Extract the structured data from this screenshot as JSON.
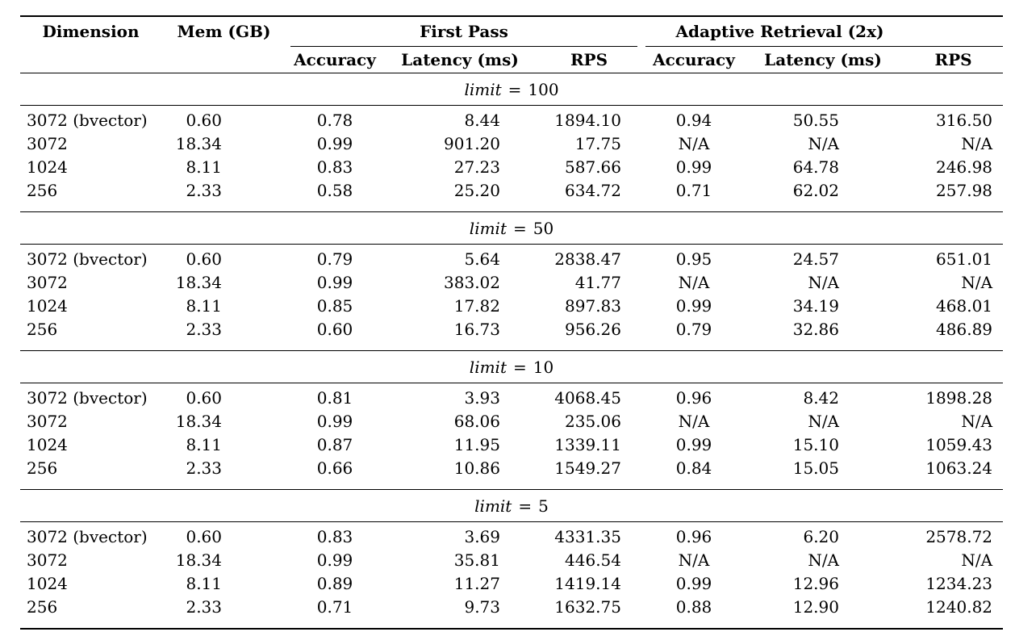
{
  "table": {
    "header": {
      "dimension": "Dimension",
      "mem": "Mem (GB)",
      "groups": [
        {
          "label": "First Pass",
          "subheaders": [
            "Accuracy",
            "Latency (ms)",
            "RPS"
          ]
        },
        {
          "label": "Adaptive Retrieval (2x)",
          "subheaders": [
            "Accuracy",
            "Latency (ms)",
            "RPS"
          ]
        }
      ]
    },
    "limit_word": "limit",
    "equals_sign": "=",
    "sections": [
      {
        "limit_value": "100",
        "rows": [
          {
            "dimension": "3072 (bvector)",
            "mem": "0.60",
            "fp_accuracy": "0.78",
            "fp_latency": "8.44",
            "fp_rps": "1894.10",
            "ar_accuracy": "0.94",
            "ar_latency": "50.55",
            "ar_rps": "316.50"
          },
          {
            "dimension": "3072",
            "mem": "18.34",
            "fp_accuracy": "0.99",
            "fp_latency": "901.20",
            "fp_rps": "17.75",
            "ar_accuracy": "N/A",
            "ar_latency": "N/A",
            "ar_rps": "N/A"
          },
          {
            "dimension": "1024",
            "mem": "8.11",
            "fp_accuracy": "0.83",
            "fp_latency": "27.23",
            "fp_rps": "587.66",
            "ar_accuracy": "0.99",
            "ar_latency": "64.78",
            "ar_rps": "246.98"
          },
          {
            "dimension": "256",
            "mem": "2.33",
            "fp_accuracy": "0.58",
            "fp_latency": "25.20",
            "fp_rps": "634.72",
            "ar_accuracy": "0.71",
            "ar_latency": "62.02",
            "ar_rps": "257.98"
          }
        ]
      },
      {
        "limit_value": "50",
        "rows": [
          {
            "dimension": "3072 (bvector)",
            "mem": "0.60",
            "fp_accuracy": "0.79",
            "fp_latency": "5.64",
            "fp_rps": "2838.47",
            "ar_accuracy": "0.95",
            "ar_latency": "24.57",
            "ar_rps": "651.01"
          },
          {
            "dimension": "3072",
            "mem": "18.34",
            "fp_accuracy": "0.99",
            "fp_latency": "383.02",
            "fp_rps": "41.77",
            "ar_accuracy": "N/A",
            "ar_latency": "N/A",
            "ar_rps": "N/A"
          },
          {
            "dimension": "1024",
            "mem": "8.11",
            "fp_accuracy": "0.85",
            "fp_latency": "17.82",
            "fp_rps": "897.83",
            "ar_accuracy": "0.99",
            "ar_latency": "34.19",
            "ar_rps": "468.01"
          },
          {
            "dimension": "256",
            "mem": "2.33",
            "fp_accuracy": "0.60",
            "fp_latency": "16.73",
            "fp_rps": "956.26",
            "ar_accuracy": "0.79",
            "ar_latency": "32.86",
            "ar_rps": "486.89"
          }
        ]
      },
      {
        "limit_value": "10",
        "rows": [
          {
            "dimension": "3072 (bvector)",
            "mem": "0.60",
            "fp_accuracy": "0.81",
            "fp_latency": "3.93",
            "fp_rps": "4068.45",
            "ar_accuracy": "0.96",
            "ar_latency": "8.42",
            "ar_rps": "1898.28"
          },
          {
            "dimension": "3072",
            "mem": "18.34",
            "fp_accuracy": "0.99",
            "fp_latency": "68.06",
            "fp_rps": "235.06",
            "ar_accuracy": "N/A",
            "ar_latency": "N/A",
            "ar_rps": "N/A"
          },
          {
            "dimension": "1024",
            "mem": "8.11",
            "fp_accuracy": "0.87",
            "fp_latency": "11.95",
            "fp_rps": "1339.11",
            "ar_accuracy": "0.99",
            "ar_latency": "15.10",
            "ar_rps": "1059.43"
          },
          {
            "dimension": "256",
            "mem": "2.33",
            "fp_accuracy": "0.66",
            "fp_latency": "10.86",
            "fp_rps": "1549.27",
            "ar_accuracy": "0.84",
            "ar_latency": "15.05",
            "ar_rps": "1063.24"
          }
        ]
      },
      {
        "limit_value": "5",
        "rows": [
          {
            "dimension": "3072 (bvector)",
            "mem": "0.60",
            "fp_accuracy": "0.83",
            "fp_latency": "3.69",
            "fp_rps": "4331.35",
            "ar_accuracy": "0.96",
            "ar_latency": "6.20",
            "ar_rps": "2578.72"
          },
          {
            "dimension": "3072",
            "mem": "18.34",
            "fp_accuracy": "0.99",
            "fp_latency": "35.81",
            "fp_rps": "446.54",
            "ar_accuracy": "N/A",
            "ar_latency": "N/A",
            "ar_rps": "N/A"
          },
          {
            "dimension": "1024",
            "mem": "8.11",
            "fp_accuracy": "0.89",
            "fp_latency": "11.27",
            "fp_rps": "1419.14",
            "ar_accuracy": "0.99",
            "ar_latency": "12.96",
            "ar_rps": "1234.23"
          },
          {
            "dimension": "256",
            "mem": "2.33",
            "fp_accuracy": "0.71",
            "fp_latency": "9.73",
            "fp_rps": "1632.75",
            "ar_accuracy": "0.88",
            "ar_latency": "12.90",
            "ar_rps": "1240.82"
          }
        ]
      }
    ]
  }
}
